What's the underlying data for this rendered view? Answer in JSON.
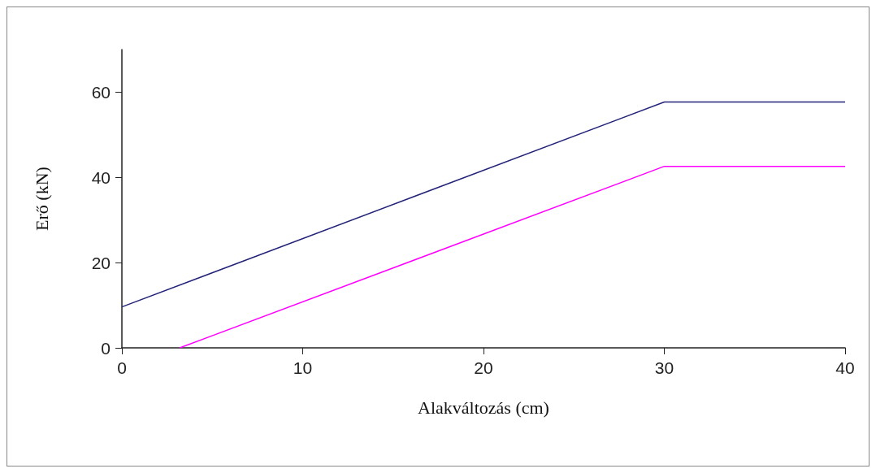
{
  "chart_data": {
    "type": "line",
    "xlabel": "Alakváltozás (cm)",
    "ylabel": "Erő (kN)",
    "xlim": [
      0,
      40
    ],
    "xticks": [
      0,
      10,
      20,
      30,
      40
    ],
    "ylim": [
      0,
      70
    ],
    "yticks": [
      0,
      20,
      40,
      60
    ],
    "grid": false,
    "marker": "none",
    "line_style": "solid",
    "series": [
      {
        "color": "#23237a",
        "x": [
          0,
          30,
          40
        ],
        "values": [
          9.6,
          57.7,
          57.7
        ]
      },
      {
        "color": "#ff00ff",
        "x": [
          3.2,
          30,
          40
        ],
        "values": [
          0,
          42.6,
          42.6
        ]
      }
    ]
  }
}
